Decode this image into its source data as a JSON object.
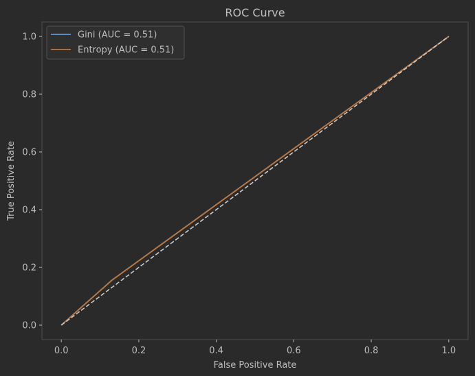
{
  "chart_data": {
    "type": "line",
    "title": "ROC Curve",
    "xlabel": "False Positive Rate",
    "ylabel": "True Positive Rate",
    "xlim": [
      -0.05,
      1.05
    ],
    "ylim": [
      -0.05,
      1.05
    ],
    "xticks": [
      0.0,
      0.2,
      0.4,
      0.6,
      0.8,
      1.0
    ],
    "yticks": [
      0.0,
      0.2,
      0.4,
      0.6,
      0.8,
      1.0
    ],
    "xtick_labels": [
      "0.0",
      "0.2",
      "0.4",
      "0.6",
      "0.8",
      "1.0"
    ],
    "ytick_labels": [
      "0.0",
      "0.2",
      "0.4",
      "0.6",
      "0.8",
      "1.0"
    ],
    "grid": false,
    "legend_position": "top-left",
    "series": [
      {
        "name": "Gini (AUC = 0.51)",
        "color": "#5b9bd5",
        "x": [
          0.0,
          0.13,
          1.0
        ],
        "y": [
          0.0,
          0.155,
          1.0
        ]
      },
      {
        "name": "Entropy (AUC = 0.51)",
        "color": "#c0763a",
        "x": [
          0.0,
          0.13,
          1.0
        ],
        "y": [
          0.0,
          0.155,
          1.0
        ]
      }
    ],
    "reference_line": {
      "x": [
        0.0,
        1.0
      ],
      "y": [
        0.0,
        1.0
      ],
      "style": "dashed",
      "color": "#c9c9c9"
    }
  },
  "colors": {
    "background": "#2a2a2a",
    "axes_frame": "#4f4f4f",
    "text": "#bdbdbd",
    "legend_bg": "#2f2f2f",
    "legend_border": "#505050"
  }
}
